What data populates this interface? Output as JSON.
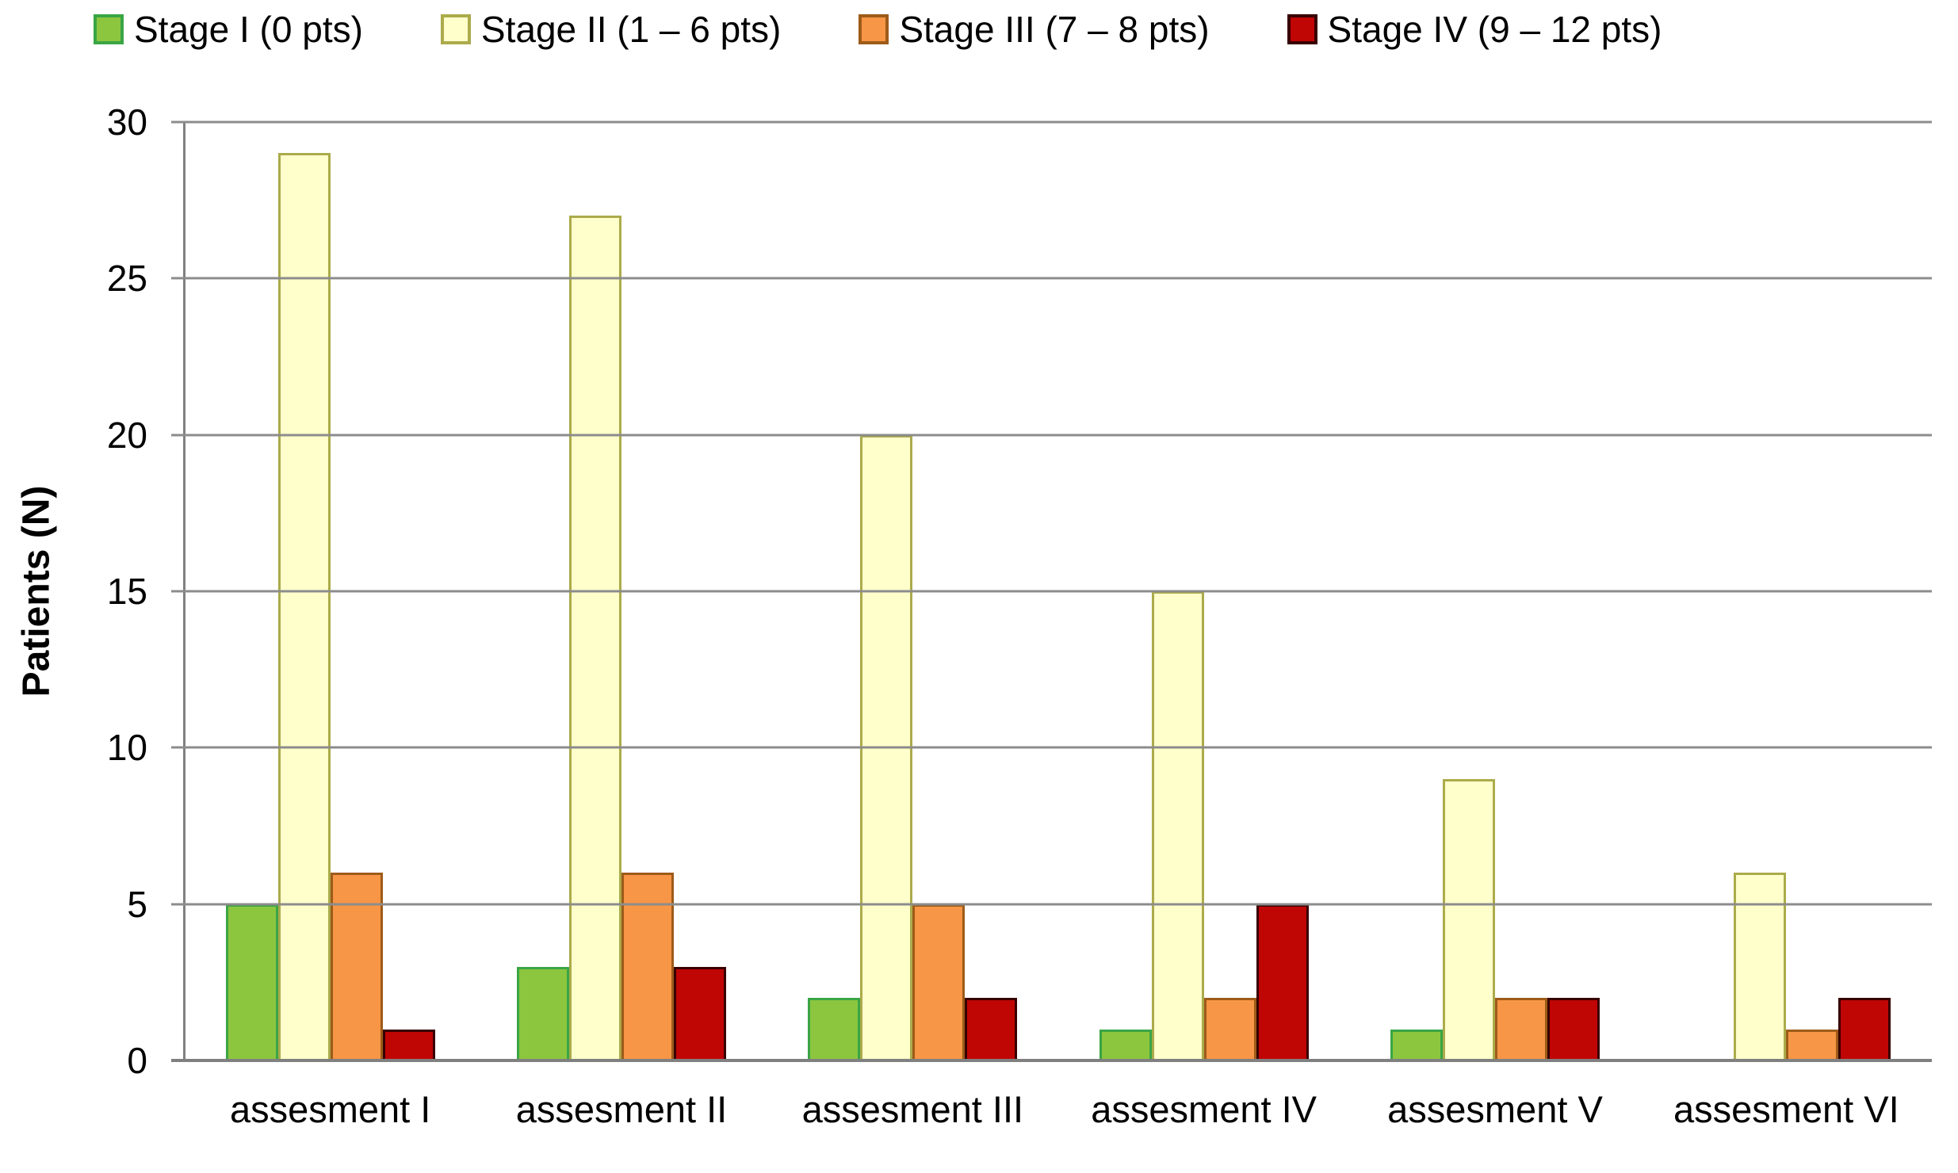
{
  "figure": {
    "background": "#FFFFFF",
    "axis_color": "#808080",
    "grid_color": "#8C8C8C",
    "text_color": "#000000"
  },
  "chart_data": {
    "type": "bar",
    "title": "",
    "xlabel": "",
    "ylabel": "Patients (N)",
    "ylim": [
      0,
      30
    ],
    "yticks": [
      0,
      5,
      10,
      15,
      20,
      25,
      30
    ],
    "grid": "horizontal gridlines every 5, gray",
    "legend_position": "top",
    "categories": [
      "assesment I",
      "assesment II",
      "assesment III",
      "assesment IV",
      "assesment V",
      "assesment VI"
    ],
    "series": [
      {
        "name": "Stage I (0 pts)",
        "fill": "#8CC63F",
        "border": "#3AA545",
        "values": [
          5,
          3,
          2,
          1,
          1,
          0
        ]
      },
      {
        "name": "Stage II (1 – 6 pts)",
        "fill": "#FFFFCC",
        "border": "#ABAB4B",
        "values": [
          29,
          27,
          20,
          15,
          9,
          6
        ]
      },
      {
        "name": "Stage III (7 – 8 pts)",
        "fill": "#F79646",
        "border": "#9D5B19",
        "values": [
          6,
          6,
          5,
          2,
          2,
          1
        ]
      },
      {
        "name": "Stage IV (9 – 12 pts)",
        "fill": "#C00505",
        "border": "#380000",
        "values": [
          1,
          3,
          2,
          5,
          2,
          2
        ]
      }
    ]
  }
}
